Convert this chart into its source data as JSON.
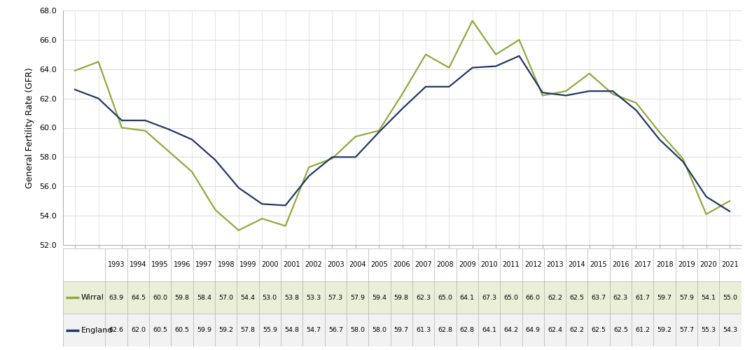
{
  "years": [
    1993,
    1994,
    1995,
    1996,
    1997,
    1998,
    1999,
    2000,
    2001,
    2002,
    2003,
    2004,
    2005,
    2006,
    2007,
    2008,
    2009,
    2010,
    2011,
    2012,
    2013,
    2014,
    2015,
    2016,
    2017,
    2018,
    2019,
    2020,
    2021
  ],
  "wirral": [
    63.9,
    64.5,
    60.0,
    59.8,
    58.4,
    57.0,
    54.4,
    53.0,
    53.8,
    53.3,
    57.3,
    57.9,
    59.4,
    59.8,
    62.3,
    65.0,
    64.1,
    67.3,
    65.0,
    66.0,
    62.2,
    62.5,
    63.7,
    62.3,
    61.7,
    59.7,
    57.9,
    54.1,
    55.0
  ],
  "england": [
    62.6,
    62.0,
    60.5,
    60.5,
    59.9,
    59.2,
    57.8,
    55.9,
    54.8,
    54.7,
    56.7,
    58.0,
    58.0,
    59.7,
    61.3,
    62.8,
    62.8,
    64.1,
    64.2,
    64.9,
    62.4,
    62.2,
    62.5,
    62.5,
    61.2,
    59.2,
    57.7,
    55.3,
    54.3
  ],
  "wirral_color": "#8faa3c",
  "england_color": "#1f3864",
  "ylabel": "General Fertility Rate (GFR)",
  "ylim_min": 52.0,
  "ylim_max": 68.0,
  "ytick_step": 2.0,
  "grid_color": "#d9d9d9",
  "line_width": 1.6,
  "legend_wirral": "Wirral",
  "legend_england": "England",
  "wirral_vals": [
    "63.9",
    "64.5",
    "60.0",
    "59.8",
    "58.4",
    "57.0",
    "54.4",
    "53.0",
    "53.8",
    "53.3",
    "57.3",
    "57.9",
    "59.4",
    "59.8",
    "62.3",
    "65.0",
    "64.1",
    "67.3",
    "65.0",
    "66.0",
    "62.2",
    "62.5",
    "63.7",
    "62.3",
    "61.7",
    "59.7",
    "57.9",
    "54.1",
    "55.0"
  ],
  "england_vals": [
    "62.6",
    "62.0",
    "60.5",
    "60.5",
    "59.9",
    "59.2",
    "57.8",
    "55.9",
    "54.8",
    "54.7",
    "56.7",
    "58.0",
    "58.0",
    "59.7",
    "61.3",
    "62.8",
    "62.8",
    "64.1",
    "64.2",
    "64.9",
    "62.4",
    "62.2",
    "62.5",
    "62.5",
    "61.2",
    "59.2",
    "57.7",
    "55.3",
    "54.3"
  ],
  "row1_bg": "#eaf0d8",
  "row2_bg": "#f2f2f2",
  "header_bg": "#ffffff",
  "border_color": "#b0b0b0",
  "cell_fontsize": 6.8,
  "label_fontsize": 8.0,
  "year_fontsize": 7.0
}
